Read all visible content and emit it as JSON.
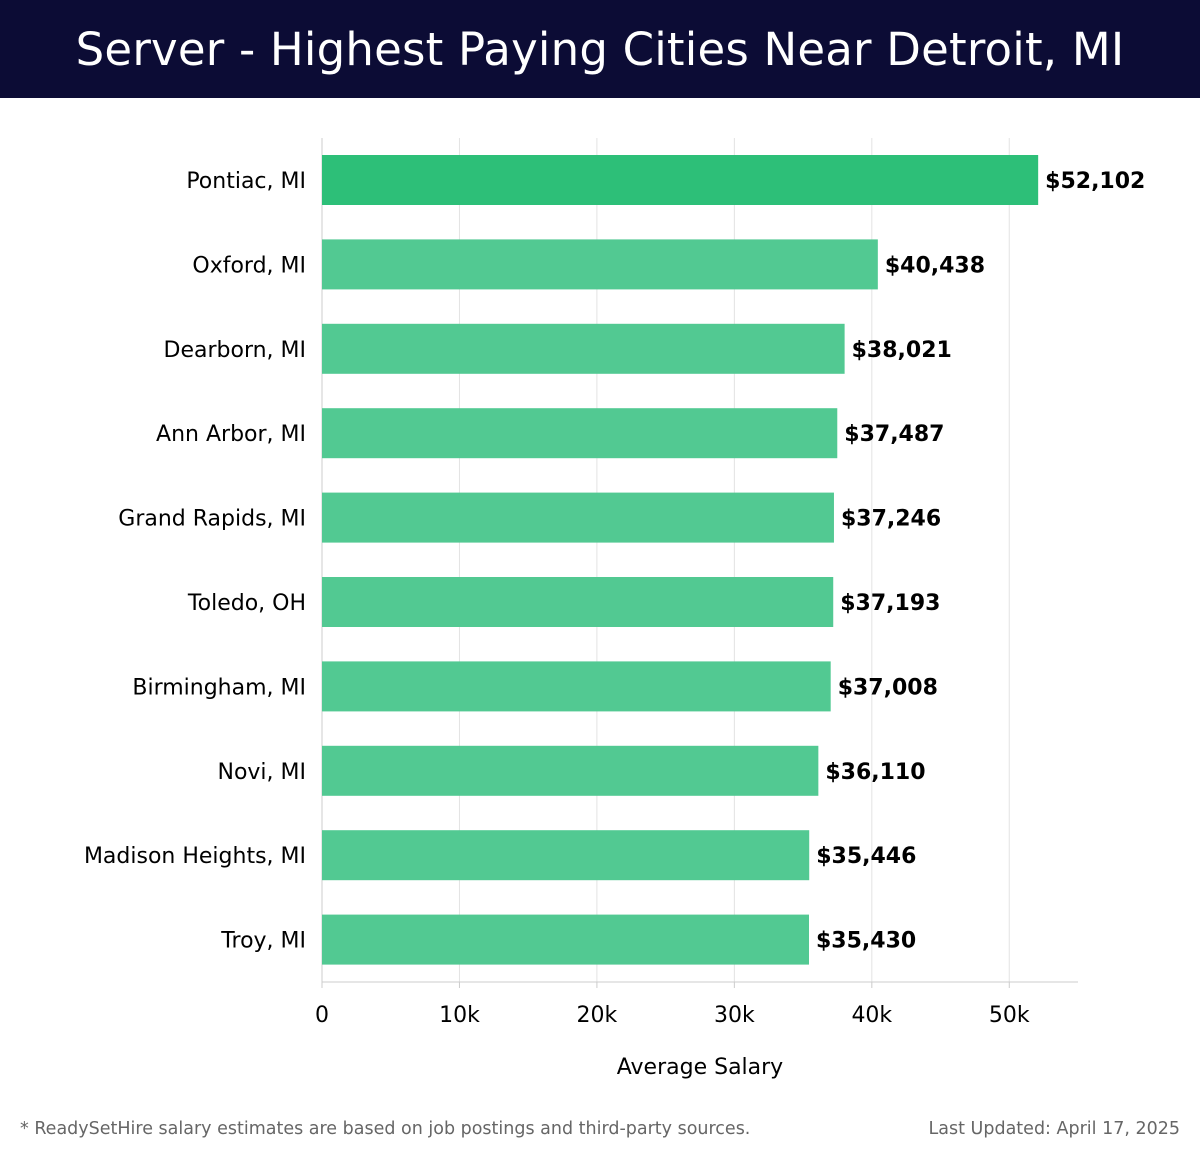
{
  "header": {
    "title": "Server - Highest Paying Cities Near Detroit, MI"
  },
  "chart_data": {
    "type": "bar",
    "orientation": "horizontal",
    "title": "Server - Highest Paying Cities Near Detroit, MI",
    "categories": [
      "Pontiac, MI",
      "Oxford, MI",
      "Dearborn, MI",
      "Ann Arbor, MI",
      "Grand Rapids, MI",
      "Toledo, OH",
      "Birmingham, MI",
      "Novi, MI",
      "Madison Heights, MI",
      "Troy, MI"
    ],
    "values": [
      52102,
      40438,
      38021,
      37487,
      37246,
      37193,
      37008,
      36110,
      35446,
      35430
    ],
    "value_labels": [
      "$52,102",
      "$40,438",
      "$38,021",
      "$37,487",
      "$37,246",
      "$37,193",
      "$37,008",
      "$36,110",
      "$35,446",
      "$35,430"
    ],
    "xlabel": "Average Salary",
    "ylabel": "",
    "xlim": [
      0,
      55000
    ],
    "xticks": [
      0,
      10000,
      20000,
      30000,
      40000,
      50000
    ],
    "xtick_labels": [
      "0",
      "10k",
      "20k",
      "30k",
      "40k",
      "50k"
    ],
    "grid": true,
    "colors": {
      "highlight": "#2dbf78",
      "bar": "#52c992",
      "grid": "#e3e3e3",
      "axis": "#cccccc",
      "label": "#000000"
    }
  },
  "footer": {
    "note": "* ReadySetHire salary estimates are based on job postings and third-party sources.",
    "updated": "Last Updated: April 17, 2025"
  }
}
